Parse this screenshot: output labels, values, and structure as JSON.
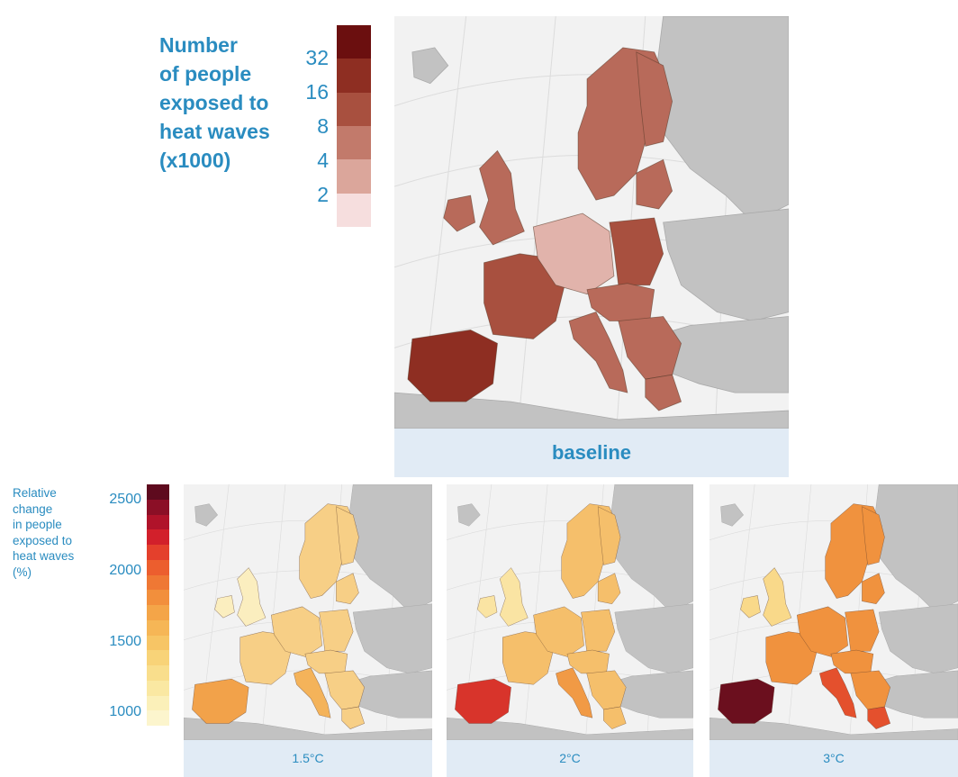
{
  "top_legend": {
    "title_lines": [
      "Number",
      "of people",
      "exposed to",
      "heat waves",
      "(x1000)"
    ],
    "ticks": [
      "32",
      "16",
      "8",
      "4",
      "2"
    ],
    "colors": [
      "#6b0f0f",
      "#8e2e22",
      "#a8503f",
      "#c27a6b",
      "#dba69b",
      "#f6dede"
    ]
  },
  "bottom_legend": {
    "title_lines": [
      "Relative",
      "change",
      "in people",
      "exposed to",
      "heat waves",
      "(%)"
    ],
    "ticks": [
      "2500",
      "2000",
      "1500",
      "1000"
    ],
    "colors": [
      "#5e0a1e",
      "#8b0f26",
      "#b0132a",
      "#d2202b",
      "#e4402c",
      "#ec5e2e",
      "#ef7834",
      "#f28f3c",
      "#f4a548",
      "#f6b656",
      "#f7c565",
      "#f8d378",
      "#f9de8c",
      "#fae8a2",
      "#fbf0b9",
      "#fcf5cd"
    ]
  },
  "panels": {
    "baseline": {
      "caption": "baseline"
    },
    "p15": {
      "caption": "1.5°C"
    },
    "p20": {
      "caption": "2°C"
    },
    "p30": {
      "caption": "3°C"
    }
  },
  "map_colors": {
    "sea": "#f2f2f2",
    "non_eu_land": "#c2c2c2",
    "graticule": "#dcdcdc",
    "borders": "#5a3a2a"
  }
}
